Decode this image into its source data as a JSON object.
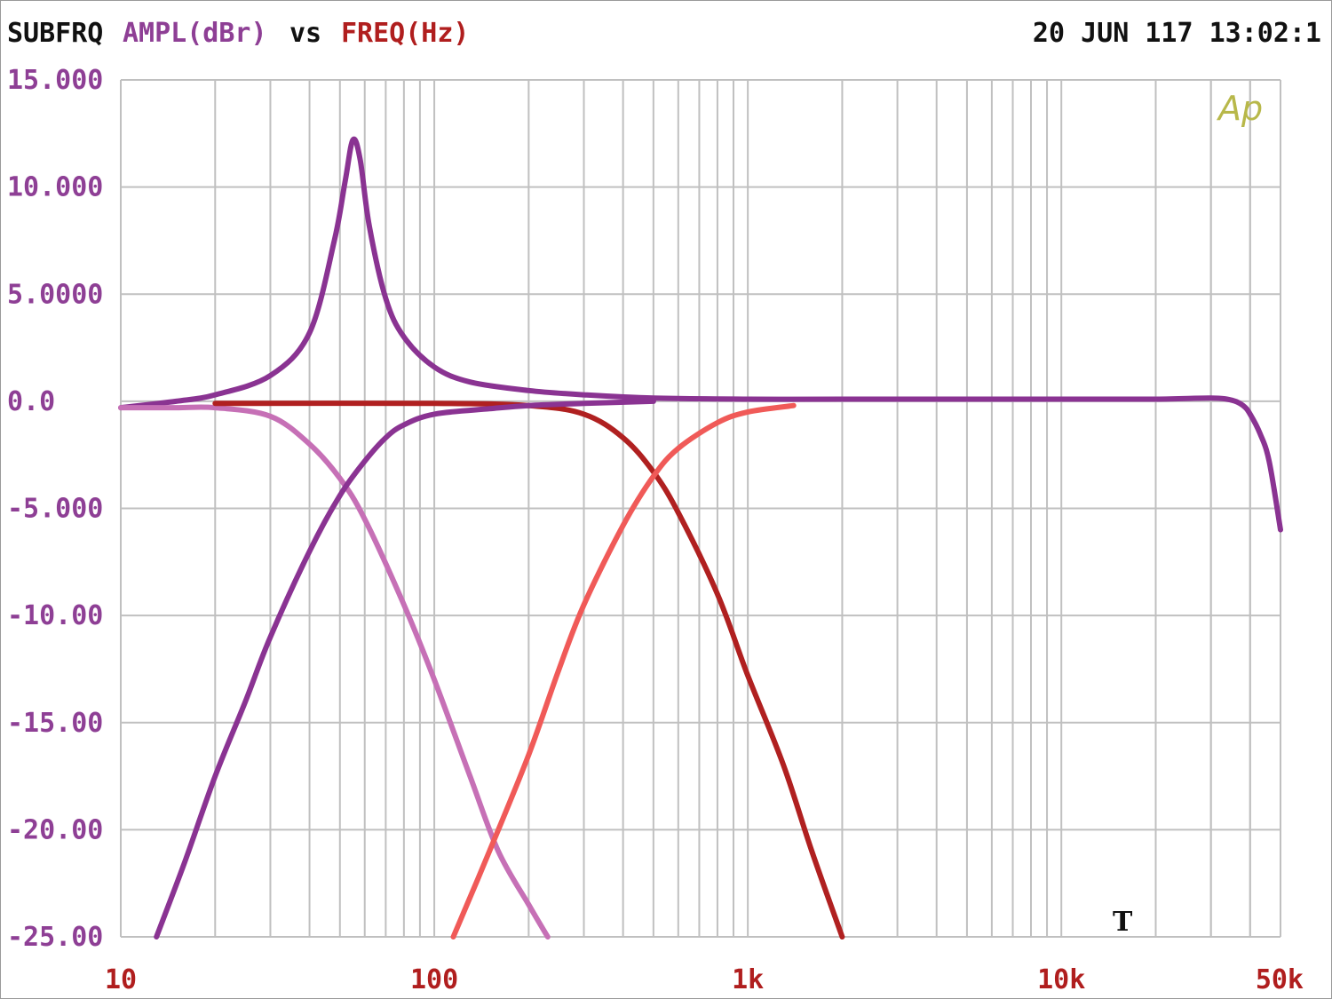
{
  "header": {
    "mode": "SUBFRQ",
    "y_quantity": "AMPL(dBr)",
    "vs": "vs",
    "x_quantity": "FREQ(Hz)",
    "datetime": "20 JUN 117 13:02:1"
  },
  "logo_text": "Ap",
  "marker_text": "T",
  "colors": {
    "y_axis_text": "#8e3f95",
    "x_axis_text": "#b01e1e",
    "grid": "#c0c0c0",
    "logo": "#b8b84a",
    "marker": "#111111"
  },
  "chart_data": {
    "type": "line",
    "x_scale": "log",
    "xlim": [
      10,
      50000
    ],
    "ylim": [
      -25,
      15
    ],
    "grid": true,
    "xlabel": "FREQ(Hz)",
    "ylabel": "AMPL(dBr)",
    "y_tick_labels": [
      {
        "value": 15,
        "label": "15.000"
      },
      {
        "value": 10,
        "label": "10.000"
      },
      {
        "value": 5,
        "label": "5.0000"
      },
      {
        "value": 0,
        "label": "0.0"
      },
      {
        "value": -5,
        "label": "-5.000"
      },
      {
        "value": -10,
        "label": "-10.00"
      },
      {
        "value": -15,
        "label": "-15.00"
      },
      {
        "value": -20,
        "label": "-20.00"
      },
      {
        "value": -25,
        "label": "-25.00"
      }
    ],
    "x_tick_labels": [
      {
        "value": 10,
        "label": "10"
      },
      {
        "value": 100,
        "label": "100"
      },
      {
        "value": 1000,
        "label": "1k"
      },
      {
        "value": 10000,
        "label": "10k"
      },
      {
        "value": 50000,
        "label": "50k"
      }
    ],
    "series": [
      {
        "color": "#8a3392",
        "points": [
          [
            10,
            -0.3
          ],
          [
            15,
            0
          ],
          [
            20,
            0.3
          ],
          [
            30,
            1.2
          ],
          [
            40,
            3.2
          ],
          [
            48,
            7.5
          ],
          [
            52,
            10.3
          ],
          [
            55,
            12.2
          ],
          [
            58,
            11.3
          ],
          [
            62,
            8.2
          ],
          [
            70,
            4.8
          ],
          [
            80,
            3
          ],
          [
            100,
            1.6
          ],
          [
            130,
            0.9
          ],
          [
            200,
            0.5
          ],
          [
            300,
            0.3
          ],
          [
            500,
            0.15
          ],
          [
            1000,
            0.1
          ],
          [
            2000,
            0.1
          ],
          [
            5000,
            0.1
          ],
          [
            10000,
            0.1
          ],
          [
            20000,
            0.1
          ],
          [
            30000,
            0.15
          ],
          [
            35000,
            0.05
          ],
          [
            38000,
            -0.2
          ],
          [
            40000,
            -0.6
          ],
          [
            43000,
            -1.5
          ],
          [
            46000,
            -2.8
          ],
          [
            50000,
            -6
          ]
        ]
      },
      {
        "color": "#c670b6",
        "points": [
          [
            10,
            -0.3
          ],
          [
            15,
            -0.3
          ],
          [
            20,
            -0.3
          ],
          [
            30,
            -0.7
          ],
          [
            40,
            -2
          ],
          [
            50,
            -3.6
          ],
          [
            60,
            -5.5
          ],
          [
            80,
            -9.5
          ],
          [
            100,
            -13
          ],
          [
            130,
            -17.5
          ],
          [
            160,
            -21
          ],
          [
            200,
            -23.5
          ],
          [
            230,
            -25
          ]
        ]
      },
      {
        "color": "#b02020",
        "points": [
          [
            20,
            -0.1
          ],
          [
            100,
            -0.1
          ],
          [
            200,
            -0.2
          ],
          [
            300,
            -0.6
          ],
          [
            400,
            -1.7
          ],
          [
            500,
            -3.3
          ],
          [
            600,
            -5.2
          ],
          [
            800,
            -9
          ],
          [
            1000,
            -12.8
          ],
          [
            1300,
            -17
          ],
          [
            1600,
            -21
          ],
          [
            2000,
            -25
          ]
        ]
      },
      {
        "color": "#f05a58",
        "points": [
          [
            115,
            -25
          ],
          [
            150,
            -21
          ],
          [
            200,
            -16.5
          ],
          [
            250,
            -12.5
          ],
          [
            300,
            -9.5
          ],
          [
            400,
            -5.8
          ],
          [
            500,
            -3.5
          ],
          [
            600,
            -2.2
          ],
          [
            800,
            -1
          ],
          [
            1000,
            -0.5
          ],
          [
            1400,
            -0.2
          ]
        ]
      },
      {
        "color": "#8a3392",
        "points": [
          [
            13,
            -25
          ],
          [
            16,
            -21.5
          ],
          [
            20,
            -17.5
          ],
          [
            25,
            -14
          ],
          [
            30,
            -11
          ],
          [
            40,
            -7
          ],
          [
            50,
            -4.4
          ],
          [
            60,
            -2.8
          ],
          [
            70,
            -1.7
          ],
          [
            80,
            -1.1
          ],
          [
            100,
            -0.6
          ],
          [
            150,
            -0.35
          ],
          [
            200,
            -0.2
          ],
          [
            300,
            -0.1
          ],
          [
            500,
            0
          ]
        ]
      }
    ]
  }
}
